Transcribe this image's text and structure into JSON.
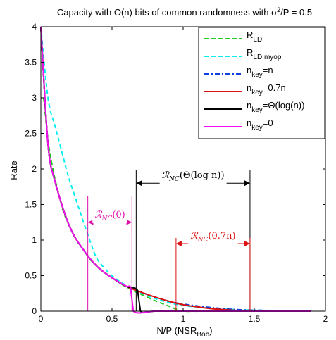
{
  "chart_data": {
    "type": "line",
    "title": "Capacity with O(n) bits of common randomness with σ²/P = 0.5",
    "xlabel": "N/P  (NSR_Bob)",
    "ylabel": "Rate",
    "xlim": [
      0,
      2
    ],
    "ylim": [
      0,
      4
    ],
    "x_ticks": [
      "0",
      "0.5",
      "1",
      "1.5",
      "2"
    ],
    "y_ticks": [
      "0",
      "0.5",
      "1",
      "1.5",
      "2",
      "2.5",
      "3",
      "3.5",
      "4"
    ],
    "legend_placement": "top-right",
    "series": [
      {
        "name": "R_LD",
        "color": "#22cc22",
        "style": "dashed",
        "x": [
          0.02,
          0.05,
          0.1,
          0.15,
          0.2,
          0.25,
          0.3,
          0.35,
          0.4,
          0.5,
          0.6,
          0.7,
          0.8,
          0.9,
          0.95,
          1.0,
          1.1
        ],
        "y": [
          3.0,
          2.4,
          1.85,
          1.45,
          1.2,
          1.0,
          0.86,
          0.72,
          0.62,
          0.47,
          0.34,
          0.24,
          0.15,
          0.07,
          0.03,
          0.0,
          0.0
        ]
      },
      {
        "name": "R_LD,myop",
        "color": "#00eeee",
        "style": "dashed",
        "x": [
          0.0,
          0.05,
          0.1,
          0.15,
          0.2,
          0.25,
          0.3,
          0.35,
          0.4,
          0.5,
          0.6,
          0.7,
          0.8,
          0.9,
          1.0,
          1.2,
          1.4,
          1.6,
          1.8,
          1.9
        ],
        "y": [
          4.0,
          3.0,
          2.6,
          2.22,
          1.85,
          1.55,
          1.25,
          0.96,
          0.72,
          0.5,
          0.36,
          0.26,
          0.18,
          0.12,
          0.08,
          0.04,
          0.02,
          0.01,
          0.005,
          0.003
        ]
      },
      {
        "name": "n_key=n",
        "color": "#1040e0",
        "style": "dashdot",
        "x": [
          0.0,
          0.05,
          0.1,
          0.2,
          0.3,
          0.4,
          0.5,
          0.6,
          0.7,
          0.8,
          0.9,
          1.0,
          1.2,
          1.4,
          1.6,
          1.8,
          1.9
        ],
        "y": [
          4.0,
          2.35,
          1.82,
          1.2,
          0.86,
          0.62,
          0.47,
          0.35,
          0.27,
          0.2,
          0.14,
          0.1,
          0.05,
          0.02,
          0.01,
          0.005,
          0.003
        ]
      },
      {
        "name": "n_key=0.7n",
        "color": "#dd1111",
        "style": "solid",
        "x": [
          0.0,
          0.05,
          0.1,
          0.2,
          0.3,
          0.4,
          0.5,
          0.6,
          0.7,
          0.8,
          0.9,
          1.0,
          1.1,
          1.2,
          1.3,
          1.4,
          1.47,
          1.6,
          1.9
        ],
        "y": [
          4.0,
          2.35,
          1.82,
          1.2,
          0.86,
          0.62,
          0.47,
          0.35,
          0.27,
          0.2,
          0.14,
          0.09,
          0.06,
          0.035,
          0.02,
          0.008,
          0.0,
          0.0,
          0.0
        ]
      },
      {
        "name": "n_key=Θ(log(n))",
        "color": "#000000",
        "style": "solid",
        "x": [
          0.0,
          0.05,
          0.1,
          0.2,
          0.3,
          0.4,
          0.5,
          0.6,
          0.68,
          0.7,
          0.8,
          1.0,
          1.5,
          1.9
        ],
        "y": [
          4.0,
          2.35,
          1.82,
          1.2,
          0.86,
          0.62,
          0.47,
          0.35,
          0.29,
          0.0,
          0.0,
          0.0,
          0.0,
          0.0
        ]
      },
      {
        "name": "n_key=0",
        "color": "#ee11ee",
        "style": "solid",
        "x": [
          0.0,
          0.05,
          0.1,
          0.2,
          0.3,
          0.4,
          0.5,
          0.6,
          0.63,
          0.65,
          0.8,
          1.0,
          1.5,
          1.9
        ],
        "y": [
          4.0,
          2.35,
          1.82,
          1.2,
          0.86,
          0.62,
          0.47,
          0.35,
          0.33,
          0.0,
          0.0,
          0.0,
          0.0,
          0.0
        ]
      }
    ],
    "annotations": [
      {
        "label": "R_NC(0)",
        "color": "#dd11aa",
        "x_start": 0.33,
        "x_end": 0.64,
        "y_arrow": 1.25,
        "y_top": 1.62
      },
      {
        "label": "R_NC(Θ(log n))",
        "color": "#000000",
        "x_start": 0.67,
        "x_end": 1.47,
        "y_arrow": 1.8,
        "y_top": 1.98
      },
      {
        "label": "R_NC(0.7n)",
        "color": "#dd1111",
        "x_start": 0.95,
        "x_end": 1.47,
        "y_arrow": 0.95,
        "y_top": 1.03
      }
    ]
  }
}
